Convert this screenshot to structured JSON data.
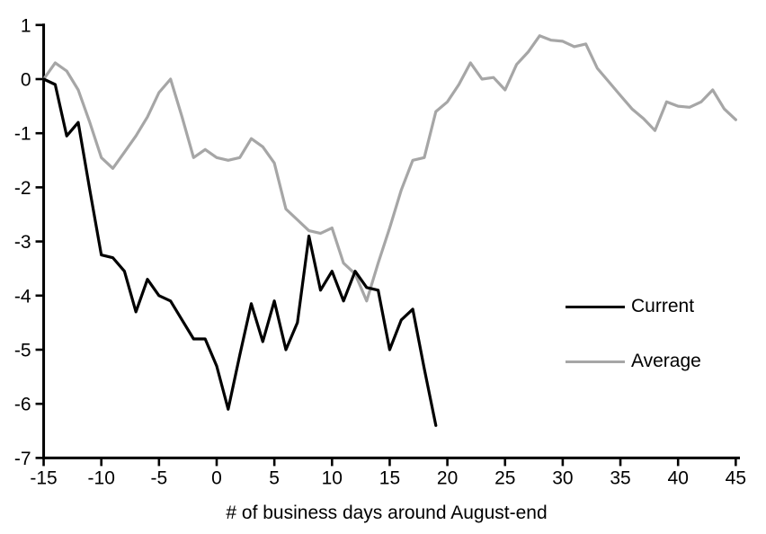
{
  "chart_data": {
    "type": "line",
    "title": "",
    "xlabel": "# of business days around August-end",
    "ylabel": "",
    "xlim": [
      -15,
      45
    ],
    "ylim": [
      -7,
      1
    ],
    "x_ticks": [
      -15,
      -10,
      -5,
      0,
      5,
      10,
      15,
      20,
      25,
      30,
      35,
      40,
      45
    ],
    "y_ticks": [
      1,
      0,
      -1,
      -2,
      -3,
      -4,
      -5,
      -6,
      -7
    ],
    "grid": false,
    "legend_position": "middle-right",
    "axis_color": "#000000",
    "background_color": "#ffffff",
    "series": [
      {
        "name": "Current",
        "color": "#000000",
        "points": [
          [
            -15,
            0
          ],
          [
            -14,
            -0.1
          ],
          [
            -13,
            -1.05
          ],
          [
            -12,
            -0.8
          ],
          [
            -11,
            -2.05
          ],
          [
            -10,
            -3.25
          ],
          [
            -9,
            -3.3
          ],
          [
            -8,
            -3.55
          ],
          [
            -7,
            -4.3
          ],
          [
            -6,
            -3.7
          ],
          [
            -5,
            -4.0
          ],
          [
            -4,
            -4.1
          ],
          [
            -3,
            -4.45
          ],
          [
            -2,
            -4.8
          ],
          [
            -1,
            -4.8
          ],
          [
            0,
            -5.3
          ],
          [
            1,
            -6.1
          ],
          [
            2,
            -5.1
          ],
          [
            3,
            -4.15
          ],
          [
            4,
            -4.85
          ],
          [
            5,
            -4.1
          ],
          [
            6,
            -5.0
          ],
          [
            7,
            -4.5
          ],
          [
            8,
            -2.9
          ],
          [
            9,
            -3.9
          ],
          [
            10,
            -3.55
          ],
          [
            11,
            -4.1
          ],
          [
            12,
            -3.55
          ],
          [
            13,
            -3.85
          ],
          [
            14,
            -3.9
          ],
          [
            15,
            -5.0
          ],
          [
            16,
            -4.45
          ],
          [
            17,
            -4.25
          ],
          [
            18,
            -5.35
          ],
          [
            19,
            -6.4
          ]
        ]
      },
      {
        "name": "Average",
        "color": "#a6a6a6",
        "points": [
          [
            -15,
            0
          ],
          [
            -14,
            0.3
          ],
          [
            -13,
            0.15
          ],
          [
            -12,
            -0.2
          ],
          [
            -11,
            -0.8
          ],
          [
            -10,
            -1.45
          ],
          [
            -9,
            -1.65
          ],
          [
            -8,
            -1.35
          ],
          [
            -7,
            -1.05
          ],
          [
            -6,
            -0.7
          ],
          [
            -5,
            -0.25
          ],
          [
            -4,
            0
          ],
          [
            -3,
            -0.7
          ],
          [
            -2,
            -1.45
          ],
          [
            -1,
            -1.3
          ],
          [
            0,
            -1.45
          ],
          [
            1,
            -1.5
          ],
          [
            2,
            -1.45
          ],
          [
            3,
            -1.1
          ],
          [
            4,
            -1.25
          ],
          [
            5,
            -1.55
          ],
          [
            6,
            -2.4
          ],
          [
            7,
            -2.6
          ],
          [
            8,
            -2.8
          ],
          [
            9,
            -2.85
          ],
          [
            10,
            -2.75
          ],
          [
            11,
            -3.4
          ],
          [
            12,
            -3.6
          ],
          [
            13,
            -4.1
          ],
          [
            14,
            -3.4
          ],
          [
            15,
            -2.75
          ],
          [
            16,
            -2.05
          ],
          [
            17,
            -1.5
          ],
          [
            18,
            -1.45
          ],
          [
            19,
            -0.6
          ],
          [
            20,
            -0.42
          ],
          [
            21,
            -0.1
          ],
          [
            22,
            0.3
          ],
          [
            23,
            0
          ],
          [
            24,
            0.03
          ],
          [
            25,
            -0.2
          ],
          [
            26,
            0.27
          ],
          [
            27,
            0.5
          ],
          [
            28,
            0.8
          ],
          [
            29,
            0.72
          ],
          [
            30,
            0.7
          ],
          [
            31,
            0.6
          ],
          [
            32,
            0.65
          ],
          [
            33,
            0.2
          ],
          [
            34,
            -0.05
          ],
          [
            35,
            -0.3
          ],
          [
            36,
            -0.55
          ],
          [
            37,
            -0.73
          ],
          [
            38,
            -0.95
          ],
          [
            39,
            -0.42
          ],
          [
            40,
            -0.5
          ],
          [
            41,
            -0.52
          ],
          [
            42,
            -0.42
          ],
          [
            43,
            -0.2
          ],
          [
            44,
            -0.55
          ],
          [
            45,
            -0.75
          ]
        ]
      }
    ]
  }
}
